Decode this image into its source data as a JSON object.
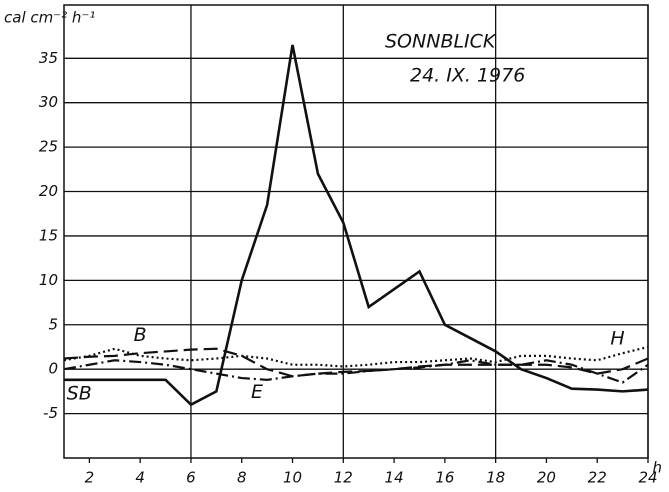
{
  "chart_data": {
    "type": "line",
    "title": "SONNBLICK",
    "subtitle": "24. IX. 1976",
    "y_label": "cal cm⁻² h⁻¹",
    "x_label": "h",
    "x": [
      1,
      2,
      3,
      4,
      5,
      6,
      7,
      8,
      9,
      10,
      11,
      12,
      13,
      14,
      15,
      16,
      17,
      18,
      19,
      20,
      21,
      22,
      23,
      24
    ],
    "series": [
      {
        "name": "SB",
        "color": "#111111",
        "dash": "solid",
        "values": [
          -1.2,
          -1.2,
          -1.2,
          -1.2,
          -1.2,
          -4,
          -2.5,
          10,
          18.5,
          36.5,
          22,
          16.5,
          7,
          9,
          11,
          5,
          3.5,
          2,
          0,
          -1,
          -2.2,
          -2.3,
          -2.5,
          -2.3
        ]
      },
      {
        "name": "B",
        "color": "#111111",
        "dash": "dashed",
        "values": [
          1.2,
          1.4,
          1.5,
          1.8,
          2,
          2.2,
          2.3,
          1.5,
          0,
          -0.8,
          -0.5,
          -0.3,
          -0.2,
          0,
          0.3,
          0.5,
          0.5,
          0.5,
          0.5,
          0.5,
          0.2,
          -0.5,
          0,
          1.2
        ]
      },
      {
        "name": "E",
        "color": "#111111",
        "dash": "dashdot",
        "values": [
          0,
          0.5,
          1,
          0.8,
          0.5,
          0,
          -0.5,
          -1,
          -1.2,
          -0.8,
          -0.5,
          -0.5,
          -0.2,
          0,
          0.2,
          0.5,
          1,
          0.5,
          0.5,
          1,
          0.5,
          -0.5,
          -1.5,
          0.5
        ]
      },
      {
        "name": "H",
        "color": "#111111",
        "dash": "dotted",
        "values": [
          1,
          1.5,
          2.3,
          1.5,
          1.2,
          1,
          1.2,
          1.5,
          1.2,
          0.5,
          0.5,
          0.3,
          0.5,
          0.8,
          0.8,
          1,
          1.2,
          0.8,
          1.5,
          1.5,
          1.2,
          1,
          1.8,
          2.5
        ]
      }
    ],
    "xlim": [
      1,
      24
    ],
    "xticks": [
      2,
      4,
      6,
      8,
      10,
      12,
      14,
      16,
      18,
      20,
      22,
      24
    ],
    "xgrid": [
      6,
      12,
      18,
      24
    ],
    "ylim": [
      -10,
      41
    ],
    "yticks": [
      -5,
      0,
      5,
      10,
      15,
      20,
      25,
      30,
      35
    ],
    "grid": true
  }
}
